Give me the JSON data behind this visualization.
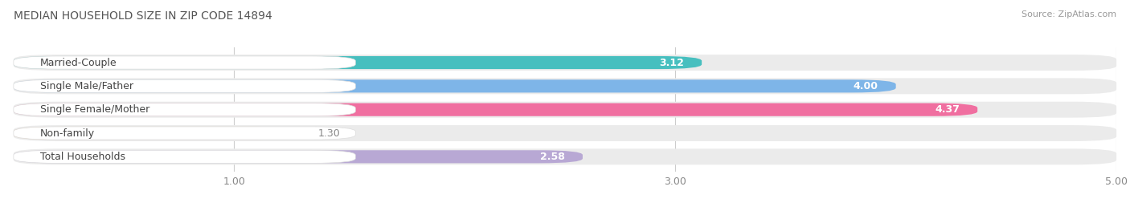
{
  "title": "MEDIAN HOUSEHOLD SIZE IN ZIP CODE 14894",
  "source": "Source: ZipAtlas.com",
  "categories": [
    "Married-Couple",
    "Single Male/Father",
    "Single Female/Mother",
    "Non-family",
    "Total Households"
  ],
  "values": [
    3.12,
    4.0,
    4.37,
    1.3,
    2.58
  ],
  "bar_colors": [
    "#47BFBF",
    "#7EB5E8",
    "#F06FA0",
    "#F5C89A",
    "#B8A8D4"
  ],
  "bar_bg_color": "#EBEBEB",
  "xlim": [
    0,
    5.0
  ],
  "xticks": [
    1.0,
    3.0,
    5.0
  ],
  "xtick_labels": [
    "1.00",
    "3.00",
    "5.00"
  ],
  "title_fontsize": 10,
  "source_fontsize": 8,
  "label_fontsize": 9,
  "value_fontsize": 9,
  "tick_fontsize": 9,
  "background_color": "#FFFFFF",
  "bar_gap_color": "#FFFFFF"
}
